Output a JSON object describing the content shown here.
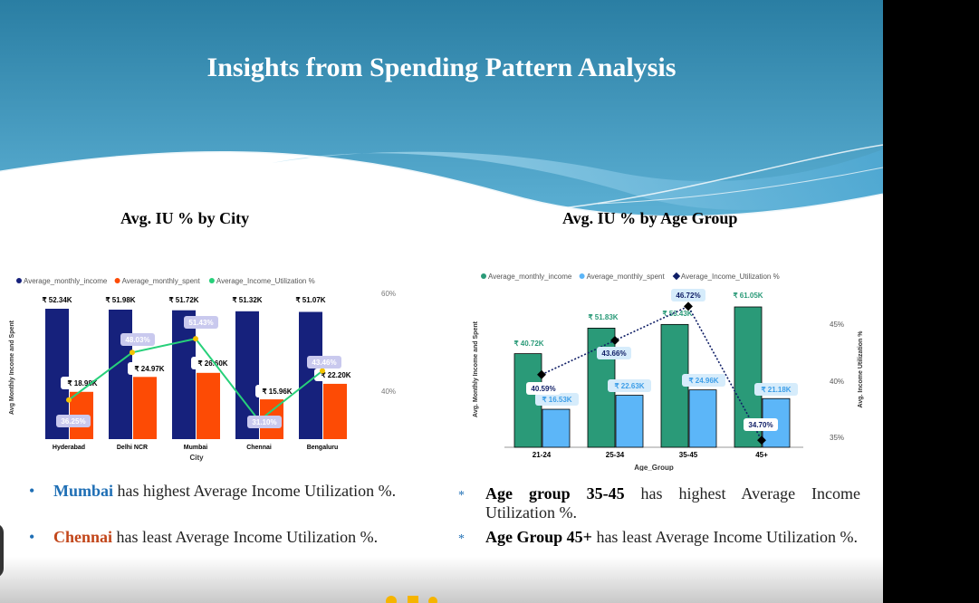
{
  "title": "Insights from Spending Pattern Analysis",
  "chart_titles": [
    "Avg. IU % by City",
    "Avg. IU % by Age Group"
  ],
  "colors": {
    "navy": "#16217c",
    "orange": "#fd4b05",
    "green_line": "#27d07a",
    "teal": "#2a9a78",
    "light_blue": "#5cb6f8",
    "dark_navy": "#0f1e66",
    "highlight_blue": "#1f6fb5",
    "highlight_orange": "#c2461a"
  },
  "chart_data": [
    {
      "type": "bar",
      "legend": [
        "Average_monthly_income",
        "Average_monthly_spent",
        "Average_Income_Utilization %"
      ],
      "categories": [
        "Hyderabad",
        "Delhi NCR",
        "Mumbai",
        "Chennai",
        "Bengaluru"
      ],
      "xlabel": "City",
      "ylabel": "Avg Monthly Income and Spent",
      "right_ticks": [
        "60%",
        "40%"
      ],
      "series": [
        {
          "name": "Average_monthly_income",
          "values": [
            52.34,
            51.98,
            51.72,
            51.32,
            51.07
          ],
          "labels": [
            "₹ 52.34K",
            "₹ 51.98K",
            "₹ 51.72K",
            "₹ 51.32K",
            "₹ 51.07K"
          ]
        },
        {
          "name": "Average_monthly_spent",
          "values": [
            18.98,
            24.97,
            26.6,
            15.96,
            22.2
          ],
          "labels": [
            "₹ 18.98K",
            "₹ 24.97K",
            "₹ 26.60K",
            "₹ 15.96K",
            "₹ 22.20K"
          ]
        },
        {
          "name": "Average_Income_Utilization %",
          "values": [
            36.25,
            48.03,
            51.43,
            31.1,
            43.46
          ],
          "labels": [
            "36.25%",
            "48.03%",
            "51.43%",
            "31.10%",
            "43.46%"
          ]
        }
      ]
    },
    {
      "type": "bar",
      "legend": [
        "Average_monthly_income",
        "Average_monthly_spent",
        "Average_Income_Utilization %"
      ],
      "categories": [
        "21-24",
        "25-34",
        "35-45",
        "45+"
      ],
      "xlabel": "Age_Group",
      "ylabel": "Avg. Monthly Income and Spent",
      "y2label": "Avg. Income Utilization %",
      "right_ticks": [
        "45%",
        "40%",
        "35%"
      ],
      "series": [
        {
          "name": "Average_monthly_income",
          "values": [
            40.72,
            51.83,
            53.43,
            61.05
          ],
          "labels": [
            "₹ 40.72K",
            "₹ 51.83K",
            "₹ 53.43K",
            "₹ 61.05K"
          ]
        },
        {
          "name": "Average_monthly_spent",
          "values": [
            16.53,
            22.63,
            24.96,
            21.18
          ],
          "labels": [
            "₹ 16.53K",
            "₹ 22.63K",
            "₹ 24.96K",
            "₹ 21.18K"
          ]
        },
        {
          "name": "Average_Income_Utilization %",
          "values": [
            40.59,
            43.66,
            46.72,
            34.7
          ],
          "labels": [
            "40.59%",
            "43.66%",
            "46.72%",
            "34.70%"
          ]
        }
      ]
    }
  ],
  "bullets_left": [
    {
      "marker": "•",
      "highlight": "Mumbai",
      "rest": " has highest Average Income Utilization %."
    },
    {
      "marker": "•",
      "highlight": "Chennai",
      "rest": " has least Average Income Utilization %."
    }
  ],
  "bullets_right": [
    {
      "marker": "*",
      "highlight": "Age group 35-45",
      "rest": " has highest Average Income Utilization %."
    },
    {
      "marker": "*",
      "highlight": "Age Group 45+",
      "rest": " has least Average Income Utilization %."
    }
  ]
}
